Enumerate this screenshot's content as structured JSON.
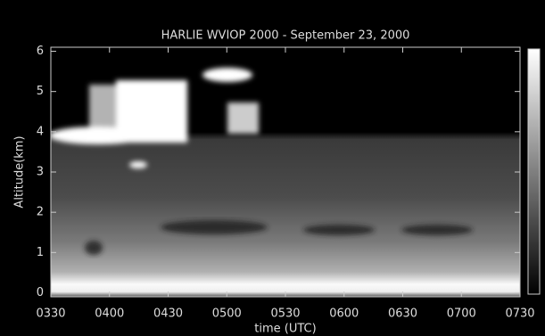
{
  "chart_data": {
    "type": "image",
    "title": "HARLIE  WVIOP 2000 - September 23, 2000",
    "xlabel": "time (UTC)",
    "ylabel": "Altitude(km)",
    "xlim": [
      3.5,
      7.5
    ],
    "xticks": [
      {
        "value": 3.5,
        "label": "0330"
      },
      {
        "value": 4,
        "label": "0400"
      },
      {
        "value": 4.5,
        "label": "0430"
      },
      {
        "value": 5,
        "label": "0500"
      },
      {
        "value": 5.5,
        "label": "0530"
      },
      {
        "value": 6,
        "label": "0600"
      },
      {
        "value": 6.5,
        "label": "0630"
      },
      {
        "value": 7,
        "label": "0700"
      },
      {
        "value": 7.5,
        "label": "0730"
      }
    ],
    "ylim": [
      -0.1,
      6.1
    ],
    "yticks": [
      0,
      1,
      2,
      3,
      4,
      5,
      6
    ]
  }
}
